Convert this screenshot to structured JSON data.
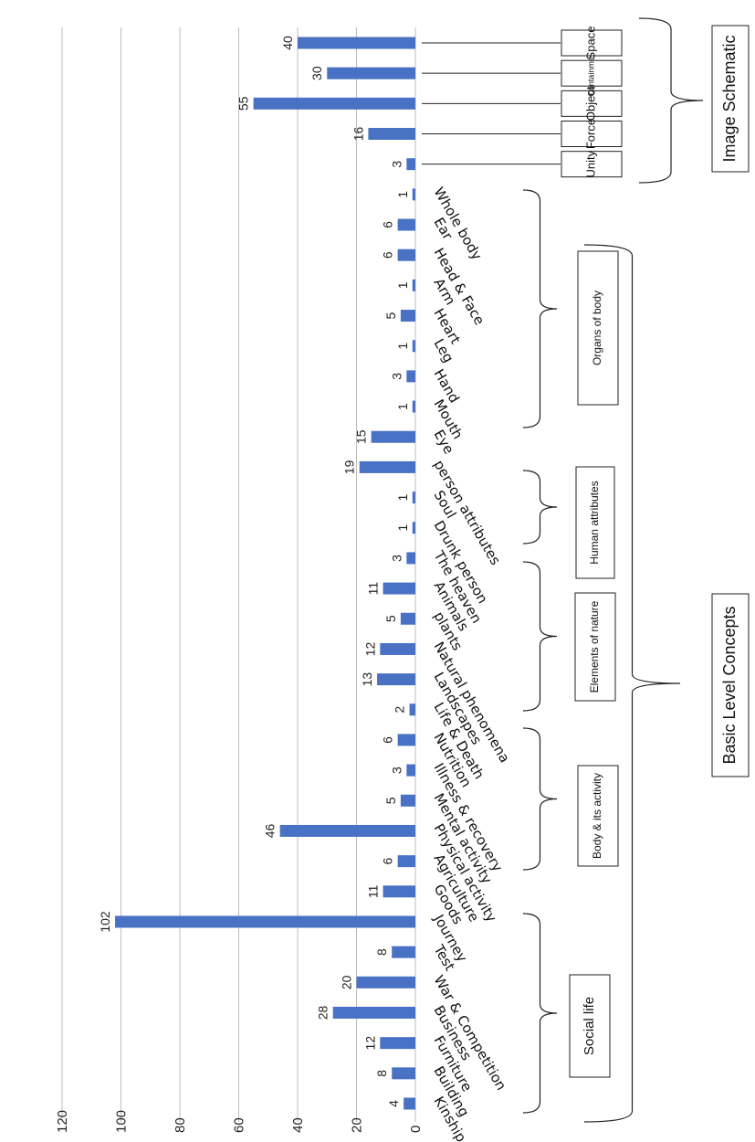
{
  "chart_data": {
    "type": "bar",
    "orientation": "horizontal-rotated",
    "title": "",
    "xlabel": "",
    "ylabel": "",
    "ylim": [
      0,
      120
    ],
    "ticks": [
      "0",
      "20",
      "40",
      "60",
      "80",
      "100",
      "120"
    ],
    "grid": true,
    "bar_color": "#4a72c4",
    "categories": [
      "Kinship term",
      "Building",
      "Furniture",
      "Business",
      "War & Competition",
      "Test",
      "Journey",
      "Goods",
      "Agriculture",
      "Physical activity",
      "Mental activity",
      "Illness & recovery",
      "Nutrition",
      "Life & Death",
      "Landscapes",
      "Natural phenomena",
      "plants",
      "Animals",
      "The heaven",
      "Drunk person",
      "Soul",
      "person attributes",
      "Eye",
      "Mouth",
      "Hand",
      "Leg",
      "Heart",
      "Arm",
      "Head & Face",
      "Ear",
      "Whole body",
      "Unity",
      "Force",
      "Object",
      "Containment",
      "Space"
    ],
    "values": [
      4,
      8,
      12,
      28,
      20,
      8,
      102,
      11,
      6,
      46,
      5,
      3,
      6,
      2,
      13,
      12,
      5,
      11,
      3,
      1,
      1,
      19,
      15,
      1,
      3,
      1,
      5,
      1,
      6,
      6,
      1,
      3,
      16,
      55,
      30,
      40
    ],
    "data_labels": [
      "4",
      "8",
      "12",
      "28",
      "20",
      "8",
      "102",
      "11",
      "6",
      "46",
      "5",
      "3",
      "6",
      "2",
      "13",
      "12",
      "5",
      "11",
      "3",
      "1",
      "1",
      "19",
      "15",
      "1",
      "3",
      "1",
      "5",
      "1",
      "6",
      "6",
      "1",
      "3",
      "16",
      "55",
      "30",
      "40"
    ],
    "category_groups": [
      {
        "label": "Social life",
        "members": [
          "Kinship term",
          "Building",
          "Furniture",
          "Business",
          "War & Competition",
          "Test",
          "Journey"
        ]
      },
      {
        "label": "Body & its activity",
        "members": [
          "Goods",
          "Agriculture",
          "Physical activity",
          "Mental activity",
          "Illness & recovery"
        ]
      },
      {
        "label": "Elements of nature",
        "members": [
          "Nutrition",
          "Life & Death",
          "Landscapes",
          "Natural phenomena",
          "plants",
          "Animals"
        ]
      },
      {
        "label": "Human attributes",
        "members": [
          "The heaven",
          "Drunk person",
          "Soul",
          "person attributes"
        ]
      },
      {
        "label": "Organs of body",
        "members": [
          "Eye",
          "Mouth",
          "Hand",
          "Leg",
          "Heart",
          "Arm",
          "Head & Face",
          "Ear",
          "Whole body"
        ]
      }
    ],
    "super_groups": [
      {
        "label": "Basic Level Concepts"
      },
      {
        "label": "Image Schematic"
      }
    ]
  }
}
